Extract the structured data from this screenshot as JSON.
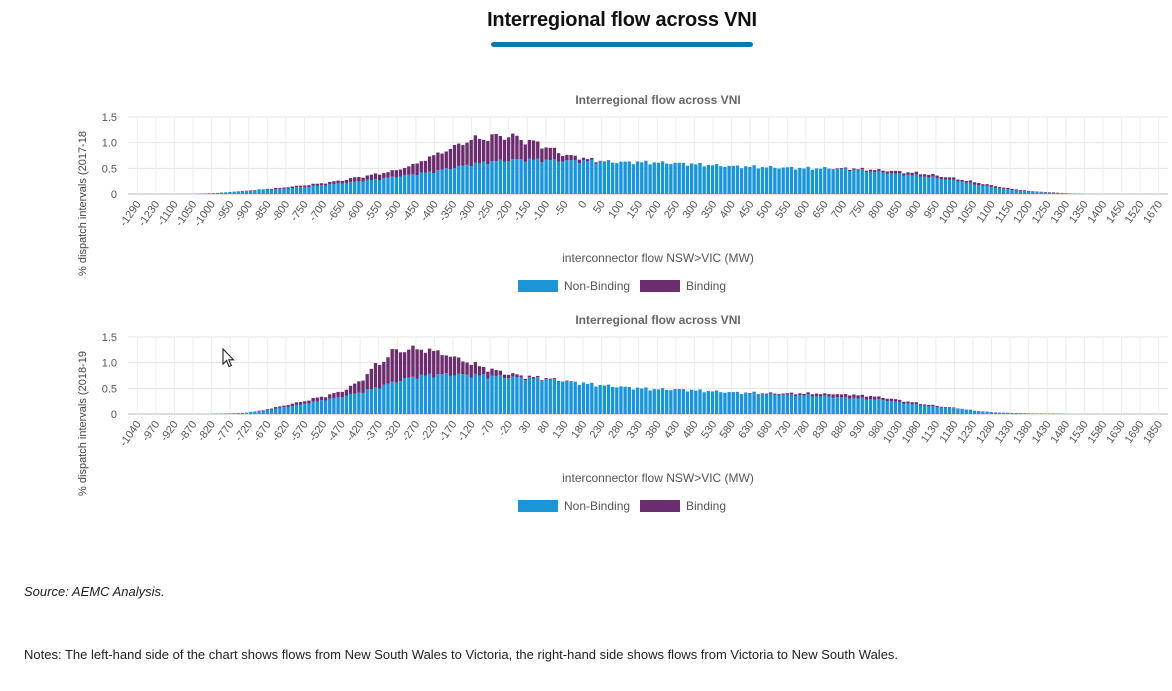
{
  "page": {
    "title": "Interregional flow across VNI",
    "source_note": "Source: AEMC Analysis.",
    "notes": "Notes: The left-hand side of the chart shows flows from New South Wales to Victoria, the right-hand side shows flows from Victoria to New South Wales."
  },
  "colors": {
    "non_binding": "#1a95d8",
    "binding": "#6b2d6e",
    "accent": "#0a7ca6"
  },
  "chart_data": [
    {
      "type": "bar",
      "stacked": true,
      "title": "Interregional flow across VNI",
      "xlabel": "interconnector flow NSW>VIC (MW)",
      "ylabel": "% dispatch intervals (2017-18",
      "ylim": [
        0,
        1.5
      ],
      "yticks": [
        0,
        0.5,
        1.0,
        1.5
      ],
      "grid": true,
      "legend_position": "bottom",
      "xtick_labels": [
        "-1290",
        "-1230",
        "-1100",
        "-1050",
        "-1000",
        "-950",
        "-900",
        "-850",
        "-800",
        "-750",
        "-700",
        "-650",
        "-600",
        "-550",
        "-500",
        "-450",
        "-400",
        "-350",
        "-300",
        "-250",
        "-200",
        "-150",
        "-100",
        "-50",
        "0",
        "50",
        "100",
        "150",
        "200",
        "250",
        "300",
        "350",
        "400",
        "450",
        "500",
        "550",
        "600",
        "650",
        "700",
        "750",
        "800",
        "850",
        "900",
        "950",
        "1000",
        "1050",
        "1100",
        "1150",
        "1200",
        "1250",
        "1300",
        "1350",
        "1400",
        "1450",
        "1520",
        "1670"
      ],
      "x": [
        -1290,
        -1230,
        -1100,
        -1050,
        -1000,
        -950,
        -900,
        -850,
        -800,
        -750,
        -700,
        -650,
        -600,
        -550,
        -500,
        -450,
        -400,
        -350,
        -300,
        -250,
        -200,
        -150,
        -100,
        -50,
        0,
        50,
        100,
        150,
        200,
        250,
        300,
        350,
        400,
        450,
        500,
        550,
        600,
        650,
        700,
        750,
        800,
        850,
        900,
        950,
        1000,
        1050,
        1100,
        1150,
        1200,
        1250,
        1300,
        1350,
        1400,
        1450,
        1520,
        1670
      ],
      "series": [
        {
          "name": "Non-Binding",
          "values": [
            0,
            0,
            0,
            0,
            0.01,
            0.03,
            0.05,
            0.08,
            0.1,
            0.13,
            0.16,
            0.2,
            0.24,
            0.28,
            0.33,
            0.38,
            0.43,
            0.5,
            0.57,
            0.62,
            0.66,
            0.67,
            0.66,
            0.65,
            0.64,
            0.63,
            0.62,
            0.62,
            0.61,
            0.6,
            0.58,
            0.56,
            0.54,
            0.53,
            0.52,
            0.51,
            0.5,
            0.5,
            0.48,
            0.45,
            0.42,
            0.38,
            0.35,
            0.3,
            0.25,
            0.18,
            0.12,
            0.07,
            0.04,
            0.02,
            0.01,
            0,
            0,
            0,
            0,
            0
          ]
        },
        {
          "name": "Binding",
          "values": [
            0,
            0,
            0,
            0,
            0,
            0,
            0.01,
            0.01,
            0.02,
            0.03,
            0.04,
            0.05,
            0.08,
            0.1,
            0.12,
            0.18,
            0.3,
            0.38,
            0.48,
            0.48,
            0.48,
            0.38,
            0.28,
            0.12,
            0.06,
            0.01,
            0,
            0,
            0,
            0,
            0,
            0,
            0,
            0,
            0,
            0,
            0,
            0,
            0.02,
            0.03,
            0.04,
            0.05,
            0.05,
            0.05,
            0.04,
            0.04,
            0.03,
            0.02,
            0.01,
            0.01,
            0,
            0,
            0,
            0,
            0,
            0
          ]
        }
      ]
    },
    {
      "type": "bar",
      "stacked": true,
      "title": "Interregional flow across VNI",
      "xlabel": "interconnector flow NSW>VIC (MW)",
      "ylabel": "% dispatch intervals (2018-19",
      "ylim": [
        0,
        1.5
      ],
      "yticks": [
        0,
        0.5,
        1.0,
        1.5
      ],
      "grid": true,
      "legend_position": "bottom",
      "xtick_labels": [
        "-1040",
        "-970",
        "-920",
        "-870",
        "-820",
        "-770",
        "-720",
        "-670",
        "-620",
        "-570",
        "-520",
        "-470",
        "-420",
        "-370",
        "-320",
        "-270",
        "-220",
        "-170",
        "-120",
        "-70",
        "-20",
        "30",
        "80",
        "130",
        "180",
        "230",
        "280",
        "330",
        "380",
        "430",
        "480",
        "530",
        "580",
        "630",
        "680",
        "730",
        "780",
        "830",
        "880",
        "930",
        "980",
        "1030",
        "1080",
        "1130",
        "1180",
        "1230",
        "1280",
        "1330",
        "1380",
        "1430",
        "1480",
        "1530",
        "1580",
        "1630",
        "1690",
        "1850"
      ],
      "x": [
        -1040,
        -970,
        -920,
        -870,
        -820,
        -770,
        -720,
        -670,
        -620,
        -570,
        -520,
        -470,
        -420,
        -370,
        -320,
        -270,
        -220,
        -170,
        -120,
        -70,
        -20,
        30,
        80,
        130,
        180,
        230,
        280,
        330,
        380,
        430,
        480,
        530,
        580,
        630,
        680,
        730,
        780,
        830,
        880,
        930,
        980,
        1030,
        1080,
        1130,
        1180,
        1230,
        1280,
        1330,
        1380,
        1430,
        1480,
        1530,
        1580,
        1630,
        1690,
        1850
      ],
      "series": [
        {
          "name": "Non-Binding",
          "values": [
            0,
            0,
            0,
            0,
            0,
            0.01,
            0.02,
            0.06,
            0.12,
            0.18,
            0.25,
            0.32,
            0.4,
            0.5,
            0.62,
            0.72,
            0.76,
            0.77,
            0.76,
            0.74,
            0.72,
            0.7,
            0.68,
            0.64,
            0.6,
            0.56,
            0.53,
            0.5,
            0.48,
            0.48,
            0.46,
            0.44,
            0.42,
            0.4,
            0.38,
            0.37,
            0.36,
            0.34,
            0.32,
            0.3,
            0.27,
            0.22,
            0.17,
            0.13,
            0.1,
            0.06,
            0.03,
            0.02,
            0.01,
            0.01,
            0,
            0,
            0,
            0,
            0,
            0
          ]
        },
        {
          "name": "Binding",
          "values": [
            0,
            0,
            0,
            0,
            0,
            0,
            0,
            0.01,
            0.03,
            0.05,
            0.07,
            0.09,
            0.18,
            0.42,
            0.6,
            0.55,
            0.48,
            0.36,
            0.24,
            0.14,
            0.07,
            0.03,
            0.02,
            0.01,
            0,
            0,
            0,
            0,
            0,
            0,
            0,
            0,
            0,
            0.01,
            0.02,
            0.03,
            0.04,
            0.05,
            0.06,
            0.06,
            0.05,
            0.04,
            0.03,
            0.02,
            0.01,
            0,
            0,
            0,
            0,
            0,
            0,
            0,
            0,
            0,
            0,
            0
          ]
        }
      ]
    }
  ]
}
